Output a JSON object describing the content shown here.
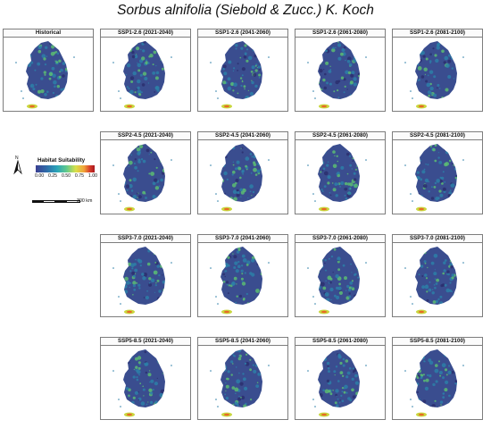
{
  "figure_title": "Sorbus alnifolia (Siebold & Zucc.) K. Koch",
  "colors": {
    "map_fill": "#3a4d8f",
    "map_mid": "#2d7fa8",
    "map_high": "#5cbc73",
    "jeju_low": "#c9d63d",
    "jeju_high": "#e86a27"
  },
  "panels": {
    "historical": "Historical",
    "ssp126": [
      "SSP1-2.6 (2021-2040)",
      "SSP1-2.6 (2041-2060)",
      "SSP1-2.6 (2061-2080)",
      "SSP1-2.6 (2081-2100)"
    ],
    "ssp245": [
      "SSP2-4.5 (2021-2040)",
      "SSP2-4.5 (2041-2060)",
      "SSP2-4.5 (2061-2080)",
      "SSP2-4.5 (2081-2100)"
    ],
    "ssp370": [
      "SSP3-7.0 (2021-2040)",
      "SSP3-7.0 (2041-2060)",
      "SSP3-7.0 (2061-2080)",
      "SSP3-7.0 (2081-2100)"
    ],
    "ssp585": [
      "SSP5-8.5 (2021-2040)",
      "SSP5-8.5 (2041-2060)",
      "SSP5-8.5 (2061-2080)",
      "SSP5-8.5 (2081-2100)"
    ]
  },
  "legend": {
    "north_label": "N",
    "title": "Habitat Suitability",
    "ticks": [
      "0.00",
      "0.25",
      "0.50",
      "0.75",
      "1.00"
    ],
    "scale_label": "300 km"
  }
}
